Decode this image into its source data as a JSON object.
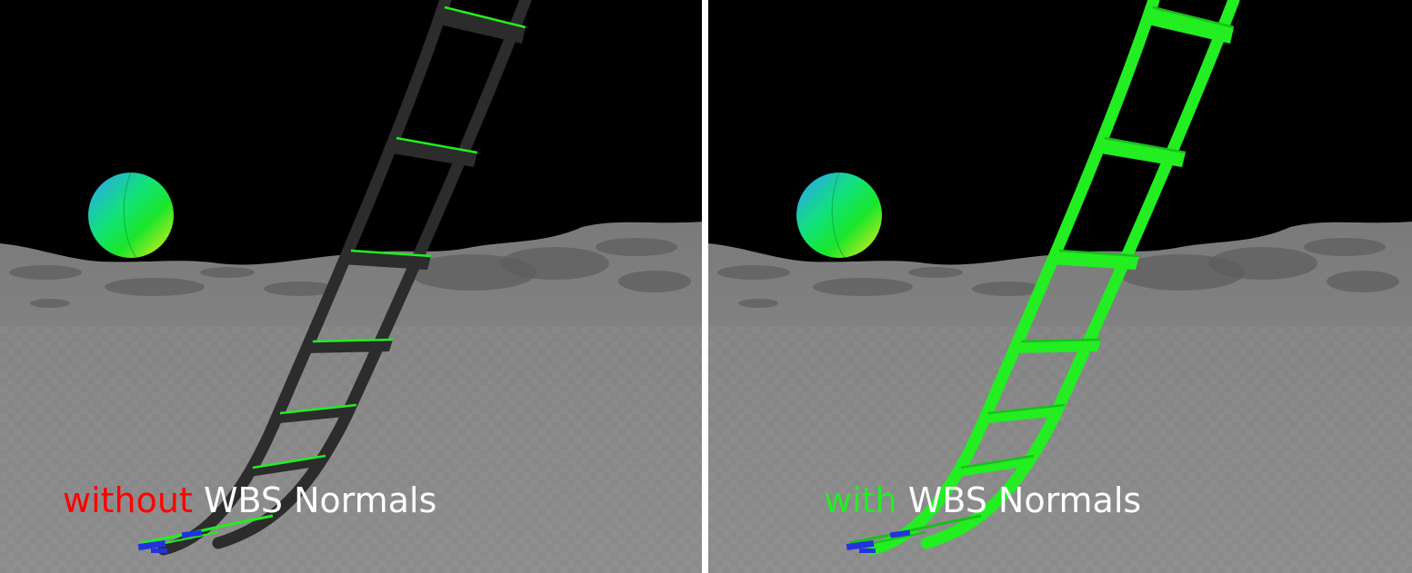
{
  "colors": {
    "sky": "#000000",
    "ground": "#8a8a8a",
    "ladder_plain": "#2c2c2c",
    "ladder_normals": "#22ee22",
    "highlight_edge": "#22ee22",
    "foot_blue": "#2233dd",
    "label_without": "#ff0000",
    "label_with": "#22ee22",
    "label_rest": "#ffffff",
    "divider": "#ffffff"
  },
  "left_panel": {
    "label_word": "without",
    "label_rest": "WBS Normals",
    "ladder_style": "plain"
  },
  "right_panel": {
    "label_word": "with",
    "label_rest": "WBS Normals",
    "ladder_style": "normals"
  }
}
